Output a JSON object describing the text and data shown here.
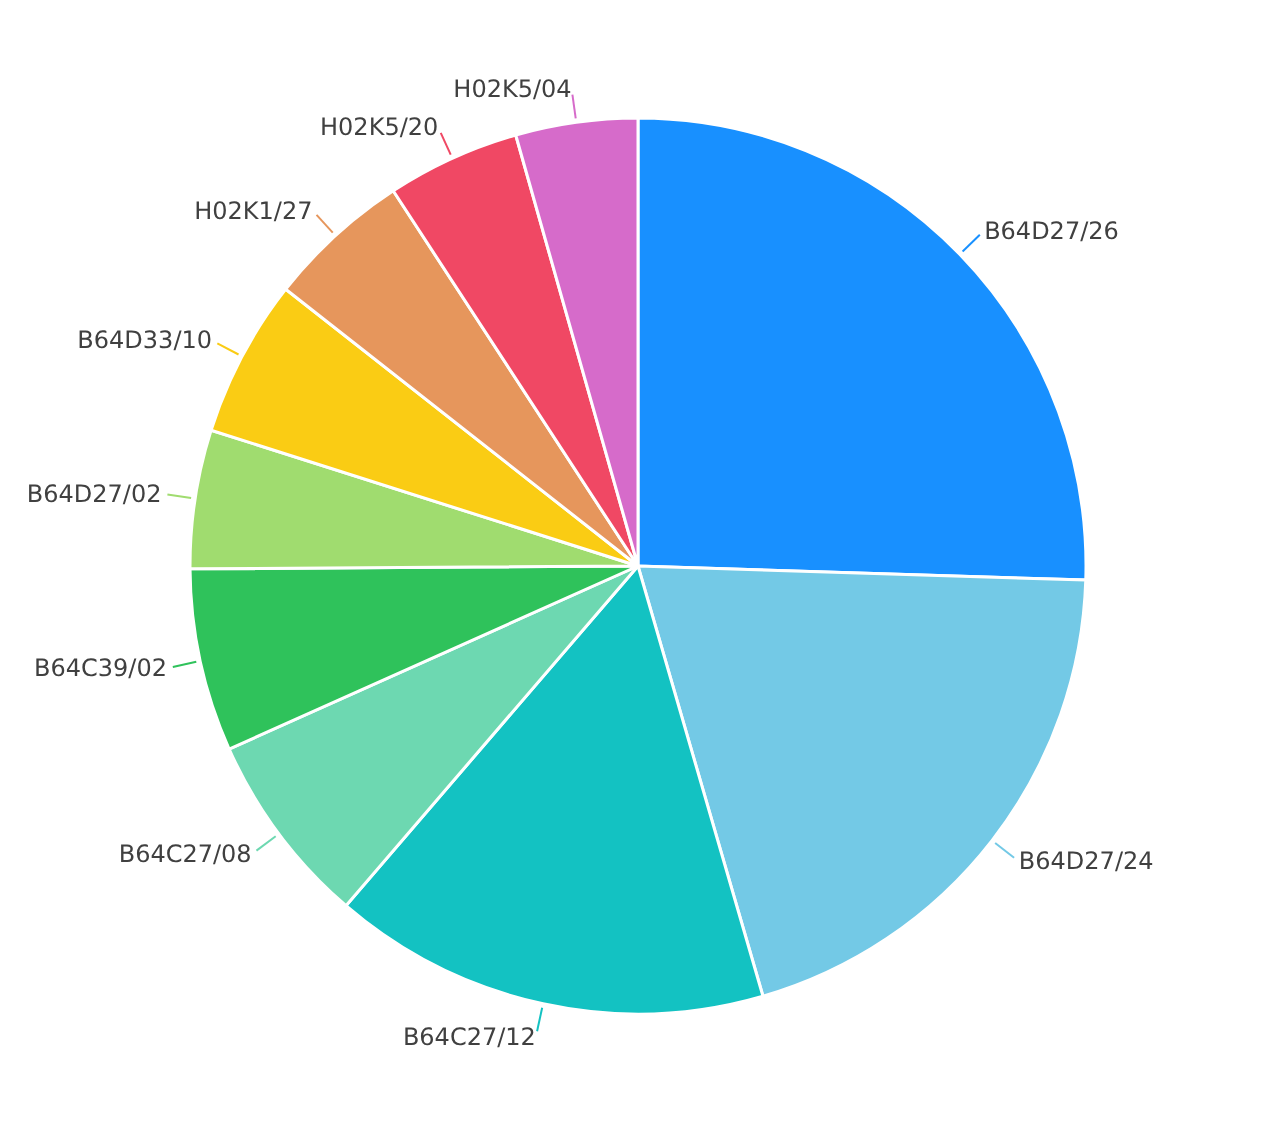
{
  "chart_data": {
    "type": "pie",
    "categories": [
      "B64D27/26",
      "B64D27/24",
      "B64C27/12",
      "B64C27/08",
      "B64C39/02",
      "B64D27/02",
      "B64D33/10",
      "H02K1/27",
      "H02K5/20",
      "H02K5/04"
    ],
    "values": [
      25.5,
      20,
      15.8,
      7,
      6.6,
      5,
      5.7,
      5.2,
      4.8,
      4.4
    ],
    "colors": [
      "#1890ff",
      "#73c9e6",
      "#13c2c2",
      "#6dd8b1",
      "#2fc25b",
      "#a0dc6f",
      "#facc14",
      "#e6965c",
      "#f04864",
      "#d66bca"
    ]
  }
}
